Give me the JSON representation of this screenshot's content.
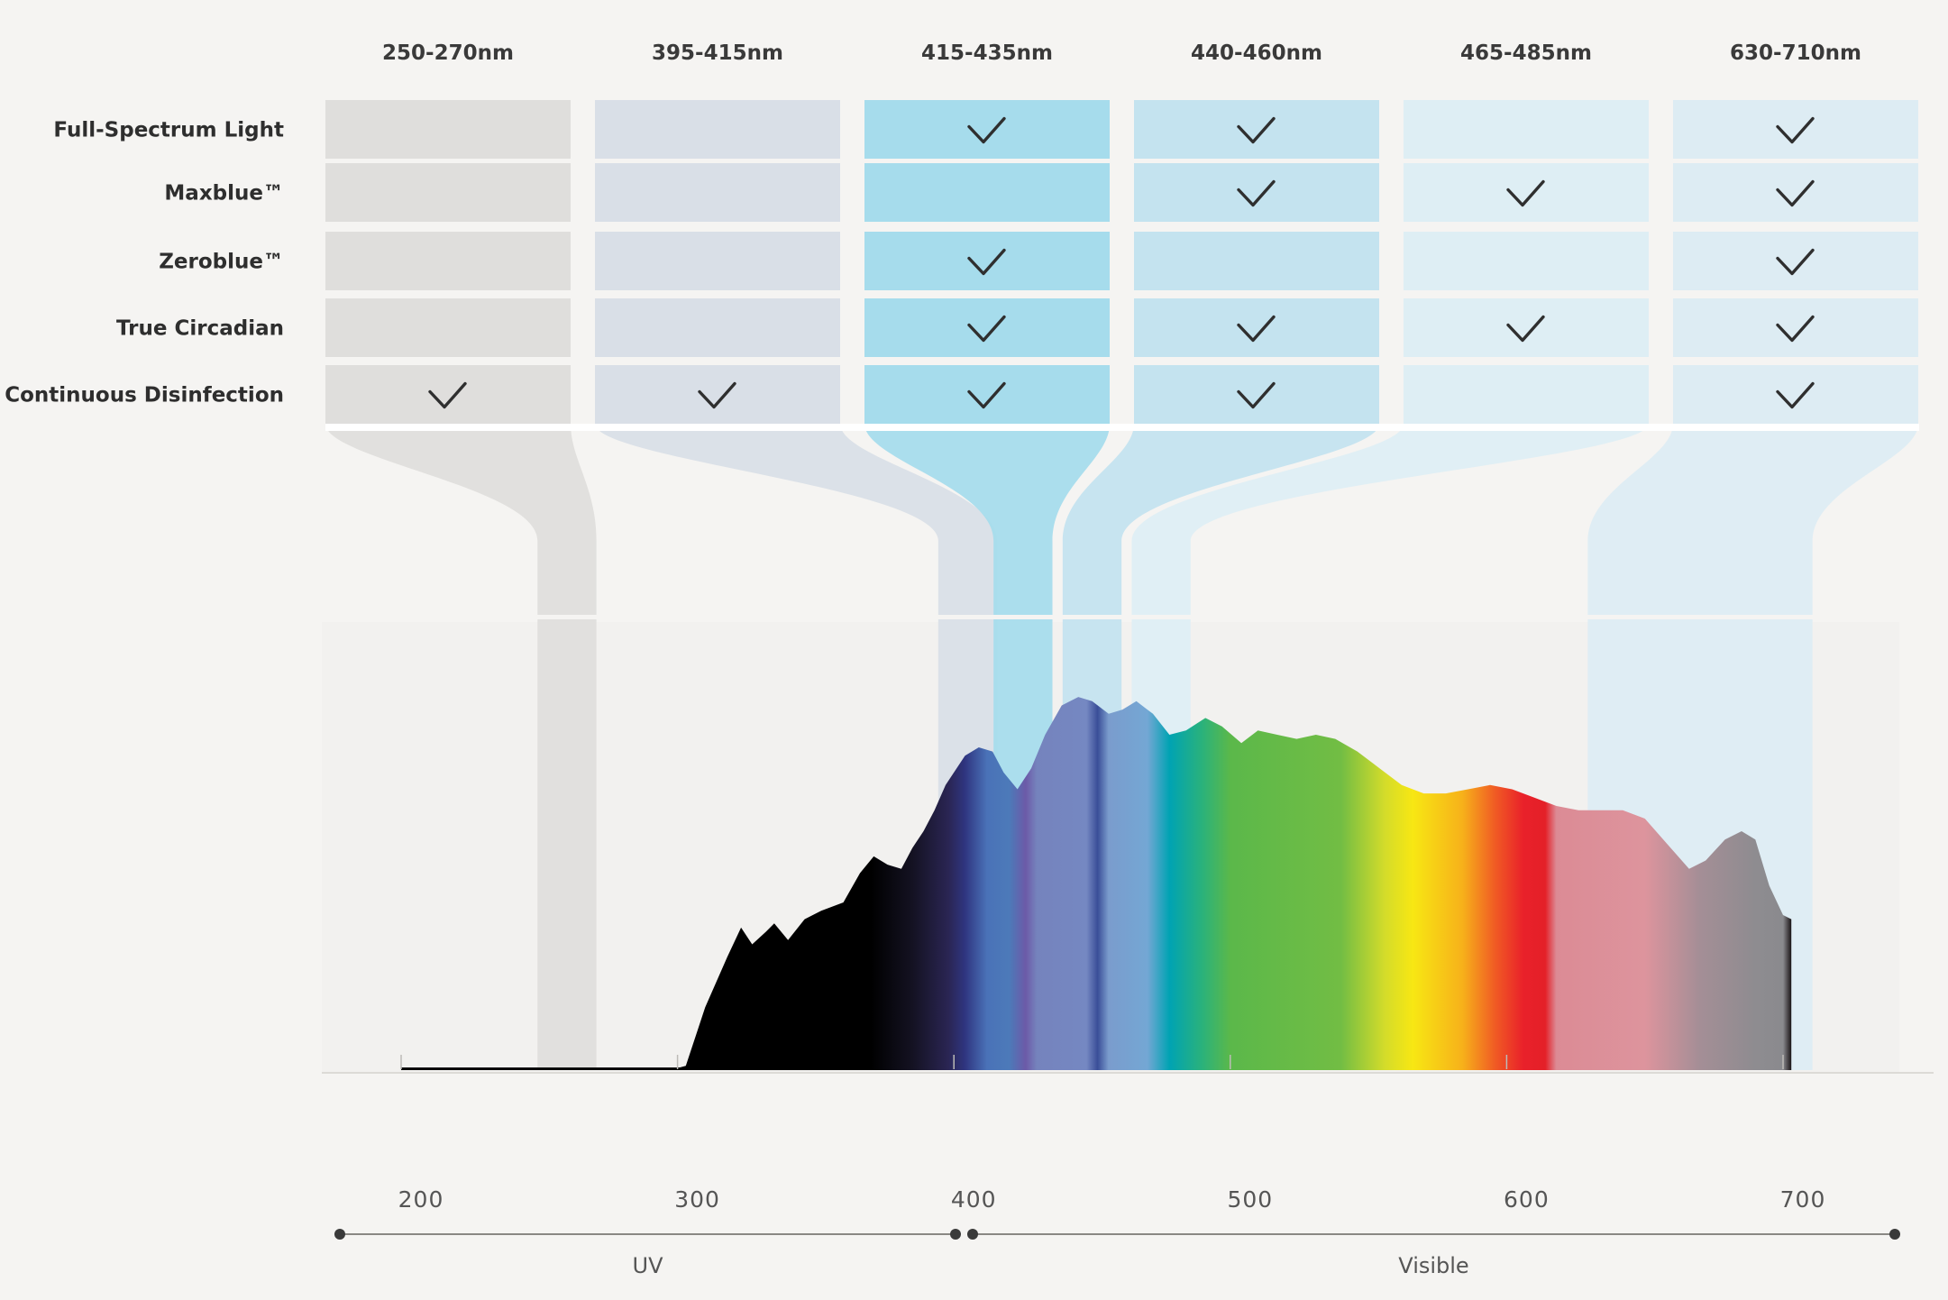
{
  "chart_data": {
    "type": "table",
    "columns": [
      {
        "label": "250-270nm",
        "range": [
          250,
          270
        ],
        "color": "#dfdedc"
      },
      {
        "label": "395-415nm",
        "range": [
          395,
          415
        ],
        "color": "#d9dfe7"
      },
      {
        "label": "415-435nm",
        "range": [
          415,
          435
        ],
        "color": "#a6dcec"
      },
      {
        "label": "440-460nm",
        "range": [
          440,
          460
        ],
        "color": "#c4e3ef"
      },
      {
        "label": "465-485nm",
        "range": [
          465,
          485
        ],
        "color": "#deeef4"
      },
      {
        "label": "630-710nm",
        "range": [
          630,
          710
        ],
        "color": "#ddecf3"
      }
    ],
    "rows": [
      {
        "label": "Full-Spectrum Light",
        "checks": [
          false,
          false,
          true,
          true,
          false,
          true
        ]
      },
      {
        "label": "Maxblue™",
        "checks": [
          false,
          false,
          false,
          true,
          true,
          true
        ]
      },
      {
        "label": "Zeroblue™",
        "checks": [
          false,
          false,
          true,
          false,
          false,
          true
        ]
      },
      {
        "label": "True Circadian",
        "checks": [
          false,
          false,
          true,
          true,
          true,
          true
        ]
      },
      {
        "label": "Continuous Disinfection",
        "checks": [
          true,
          true,
          true,
          true,
          false,
          true
        ]
      }
    ],
    "spectrum": {
      "xlim": [
        170,
        730
      ],
      "x_ticks": [
        200,
        300,
        400,
        500,
        600,
        700
      ],
      "regions": [
        {
          "label": "UV",
          "range": [
            185,
            397
          ]
        },
        {
          "label": "Visible",
          "range": [
            403,
            736
          ]
        }
      ],
      "curve": [
        [
          200,
          0.005
        ],
        [
          300,
          0.005
        ],
        [
          303,
          0.01
        ],
        [
          310,
          0.15
        ],
        [
          318,
          0.27
        ],
        [
          323,
          0.34
        ],
        [
          327,
          0.3
        ],
        [
          332,
          0.33
        ],
        [
          335,
          0.35
        ],
        [
          340,
          0.31
        ],
        [
          346,
          0.36
        ],
        [
          352,
          0.38
        ],
        [
          360,
          0.4
        ],
        [
          366,
          0.47
        ],
        [
          371,
          0.51
        ],
        [
          376,
          0.49
        ],
        [
          381,
          0.48
        ],
        [
          385,
          0.53
        ],
        [
          389,
          0.57
        ],
        [
          393,
          0.62
        ],
        [
          397,
          0.68
        ],
        [
          404,
          0.75
        ],
        [
          409,
          0.77
        ],
        [
          414,
          0.76
        ],
        [
          418,
          0.71
        ],
        [
          423,
          0.67
        ],
        [
          428,
          0.72
        ],
        [
          433,
          0.8
        ],
        [
          439,
          0.87
        ],
        [
          445,
          0.89
        ],
        [
          450,
          0.88
        ],
        [
          456,
          0.85
        ],
        [
          461,
          0.86
        ],
        [
          466,
          0.88
        ],
        [
          472,
          0.85
        ],
        [
          478,
          0.8
        ],
        [
          484,
          0.81
        ],
        [
          491,
          0.84
        ],
        [
          497,
          0.82
        ],
        [
          504,
          0.78
        ],
        [
          510,
          0.81
        ],
        [
          517,
          0.8
        ],
        [
          524,
          0.79
        ],
        [
          531,
          0.8
        ],
        [
          538,
          0.79
        ],
        [
          546,
          0.76
        ],
        [
          554,
          0.72
        ],
        [
          562,
          0.68
        ],
        [
          570,
          0.66
        ],
        [
          578,
          0.66
        ],
        [
          586,
          0.67
        ],
        [
          594,
          0.68
        ],
        [
          602,
          0.67
        ],
        [
          610,
          0.65
        ],
        [
          618,
          0.63
        ],
        [
          626,
          0.62
        ],
        [
          634,
          0.62
        ],
        [
          642,
          0.62
        ],
        [
          650,
          0.6
        ],
        [
          658,
          0.54
        ],
        [
          666,
          0.48
        ],
        [
          672,
          0.5
        ],
        [
          679,
          0.55
        ],
        [
          685,
          0.57
        ],
        [
          690,
          0.55
        ],
        [
          695,
          0.44
        ],
        [
          700,
          0.37
        ],
        [
          703,
          0.36
        ],
        [
          703,
          0
        ]
      ]
    }
  },
  "colors": {
    "background": "#f5f4f2",
    "plot_background": "#f2f1ef"
  }
}
